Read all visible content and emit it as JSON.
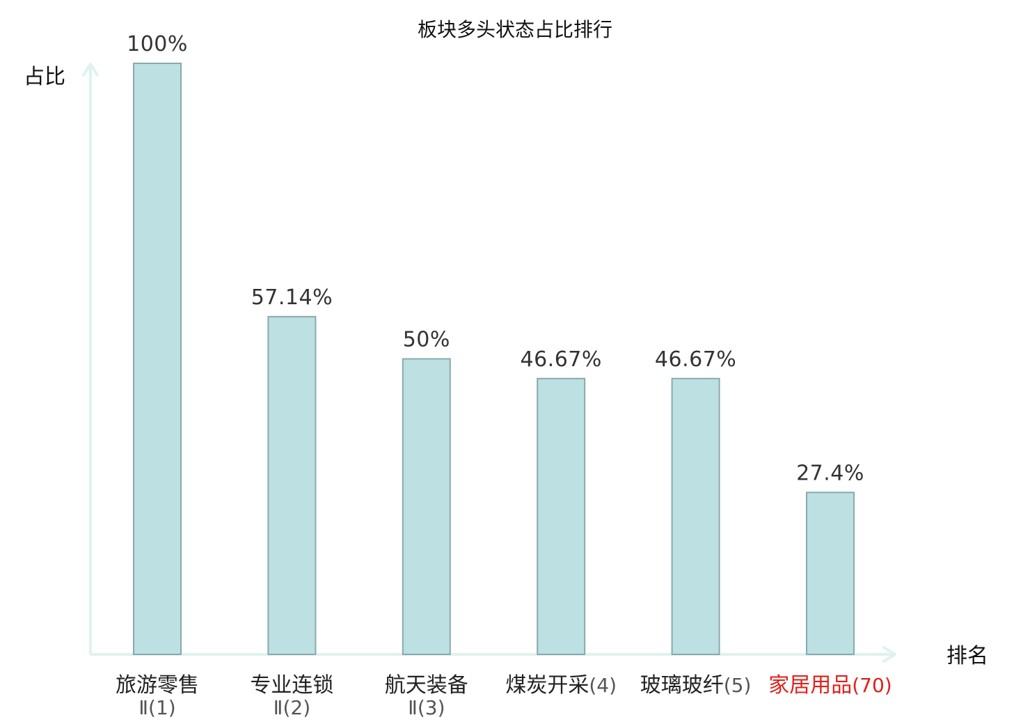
{
  "chart_data": {
    "type": "bar",
    "title": "板块多头状态占比排行",
    "xlabel": "排名",
    "ylabel": "占比",
    "ylim": [
      0,
      100
    ],
    "grid": false,
    "categories": [
      {
        "name": "旅游零售",
        "rank": "Ⅱ(1)",
        "highlight": false
      },
      {
        "name": "专业连锁",
        "rank": "Ⅱ(2)",
        "highlight": false
      },
      {
        "name": "航天装备",
        "rank": "Ⅱ(3)",
        "highlight": false
      },
      {
        "name": "煤炭开采",
        "rank": "(4)",
        "highlight": false
      },
      {
        "name": "玻璃玻纤",
        "rank": "(5)",
        "highlight": false
      },
      {
        "name": "家居用品",
        "rank": "(70)",
        "highlight": true
      }
    ],
    "values": [
      100,
      57.14,
      50,
      46.67,
      46.67,
      27.4
    ],
    "value_labels": [
      "100%",
      "57.14%",
      "50%",
      "46.67%",
      "46.67%",
      "27.4%"
    ]
  },
  "colors": {
    "bar_fill": "#bde0e3",
    "bar_stroke": "#8aa9ac",
    "axis": "#dff2ef",
    "highlight": "#e0201b",
    "text": "#222222",
    "rank_text": "#555555"
  }
}
